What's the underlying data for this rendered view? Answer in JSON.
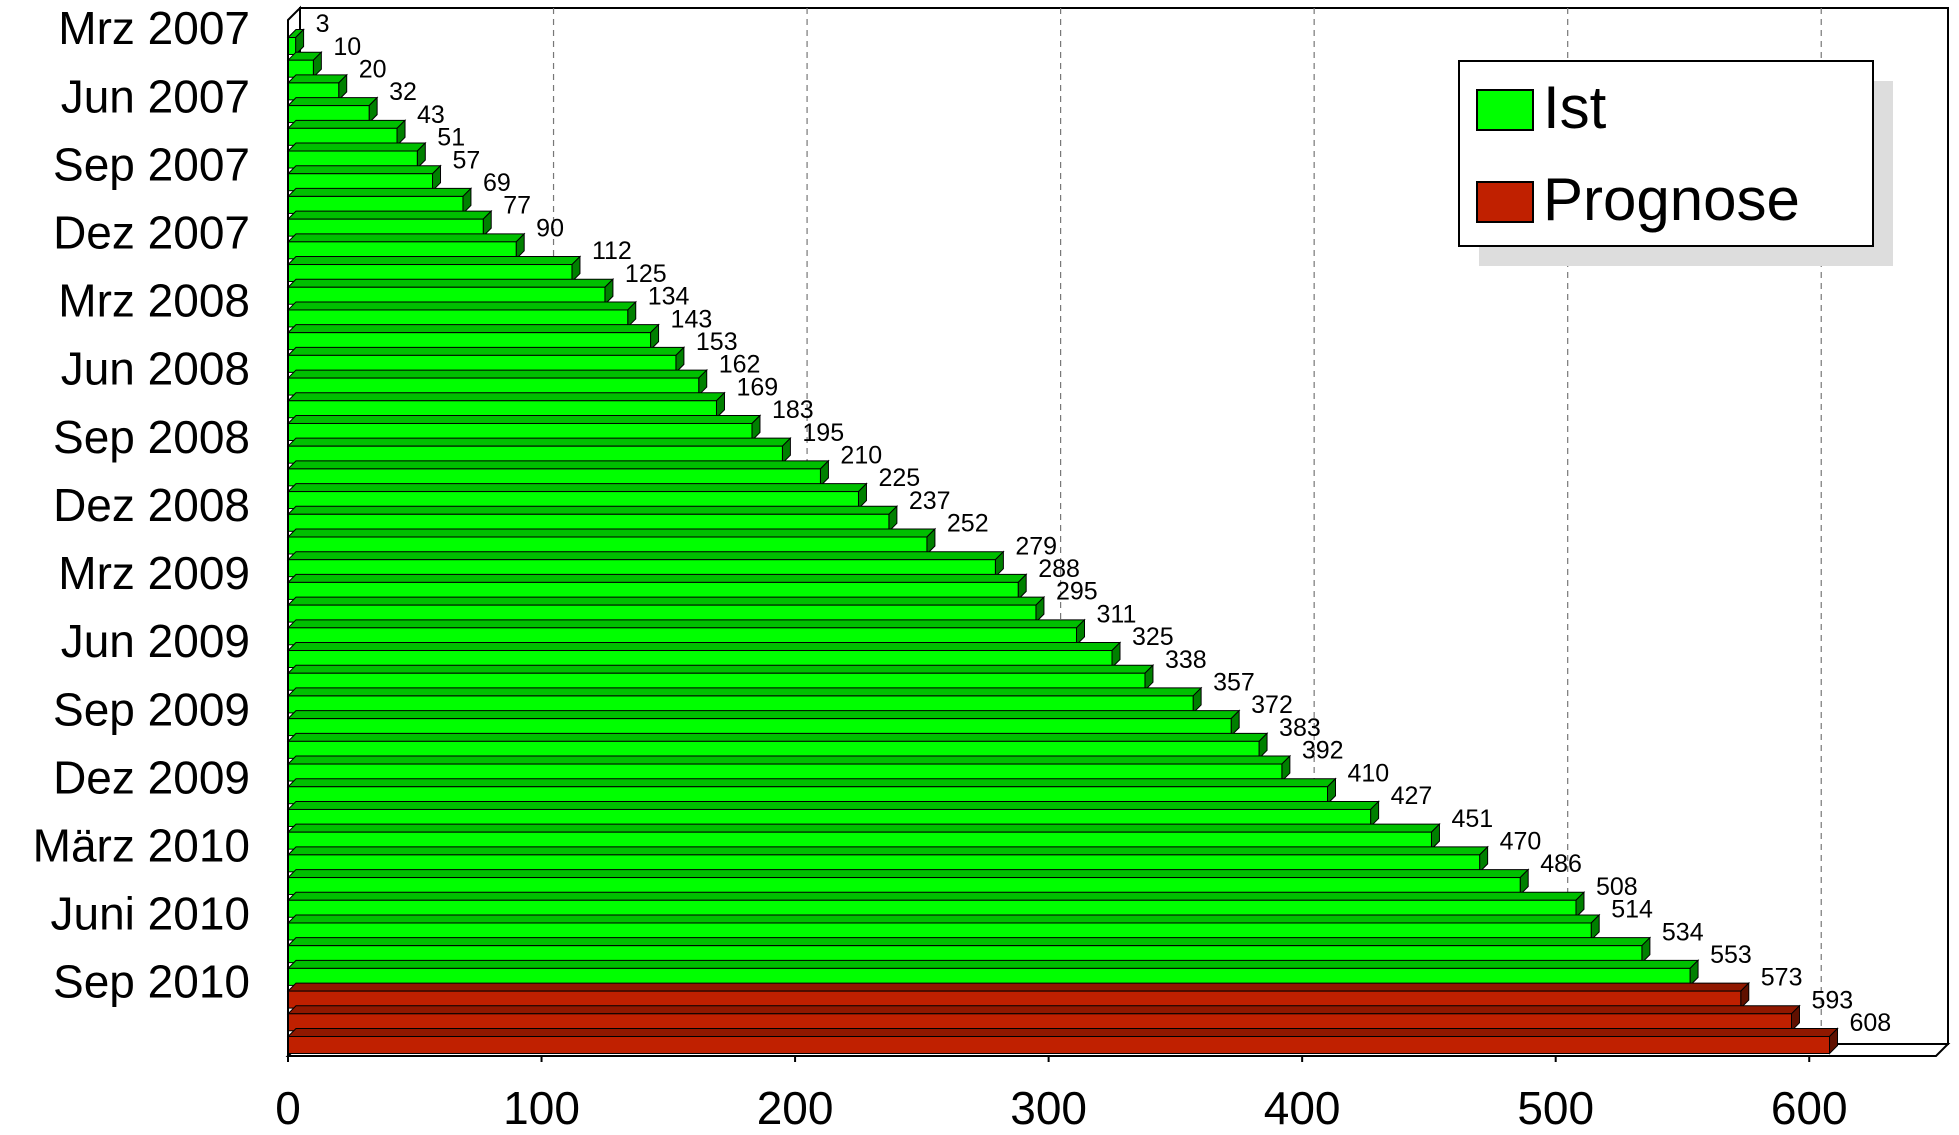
{
  "chart_data": {
    "type": "bar",
    "orientation": "horizontal",
    "categories": [
      "Mrz 2007",
      null,
      null,
      "Jun 2007",
      null,
      null,
      "Sep 2007",
      null,
      null,
      "Dez 2007",
      null,
      null,
      "Mrz 2008",
      null,
      null,
      "Jun 2008",
      null,
      null,
      "Sep 2008",
      null,
      null,
      "Dez 2008",
      null,
      null,
      "Mrz 2009",
      null,
      null,
      "Jun 2009",
      null,
      null,
      "Sep 2009",
      null,
      null,
      "Dez 2009",
      null,
      null,
      "März 2010",
      null,
      null,
      "Juni 2010",
      null,
      null,
      "Sep 2010",
      null,
      null
    ],
    "series": [
      {
        "name": "Ist",
        "color": "#00ff00",
        "values": [
          3,
          10,
          20,
          32,
          43,
          51,
          57,
          69,
          77,
          90,
          112,
          125,
          134,
          143,
          153,
          162,
          169,
          183,
          195,
          210,
          225,
          237,
          252,
          279,
          288,
          295,
          311,
          325,
          338,
          357,
          372,
          383,
          392,
          410,
          427,
          451,
          470,
          486,
          508,
          514,
          534,
          553,
          null,
          null,
          null
        ]
      },
      {
        "name": "Prognose",
        "color": "#c02000",
        "values": [
          null,
          null,
          null,
          null,
          null,
          null,
          null,
          null,
          null,
          null,
          null,
          null,
          null,
          null,
          null,
          null,
          null,
          null,
          null,
          null,
          null,
          null,
          null,
          null,
          null,
          null,
          null,
          null,
          null,
          null,
          null,
          null,
          null,
          null,
          null,
          null,
          null,
          null,
          null,
          null,
          null,
          null,
          573,
          593,
          608
        ]
      }
    ],
    "xlim": [
      0,
      650
    ],
    "xticks": [
      0,
      100,
      200,
      300,
      400,
      500,
      600
    ],
    "grid": true,
    "legend": "upper right"
  }
}
